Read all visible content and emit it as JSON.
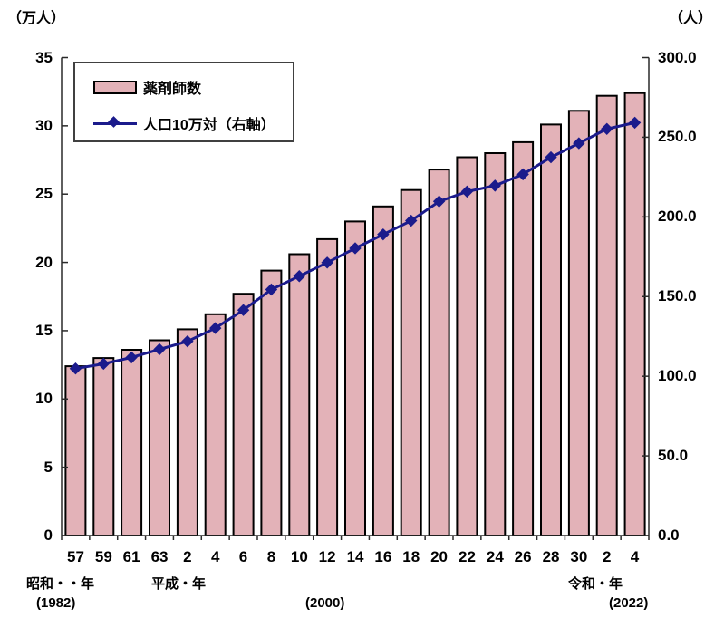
{
  "chart_data": {
    "type": "bar+line",
    "categories": [
      "57",
      "59",
      "61",
      "63",
      "2",
      "4",
      "6",
      "8",
      "10",
      "12",
      "14",
      "16",
      "18",
      "20",
      "22",
      "24",
      "26",
      "28",
      "30",
      "2",
      "4"
    ],
    "series": [
      {
        "name": "薬剤師数",
        "type": "bar",
        "axis": "left",
        "color": "#e3b2b8",
        "border_color": "#000000",
        "values": [
          12.4,
          13.0,
          13.6,
          14.3,
          15.1,
          16.2,
          17.7,
          19.4,
          20.6,
          21.7,
          23.0,
          24.1,
          25.3,
          26.8,
          27.7,
          28.0,
          28.8,
          30.1,
          31.1,
          32.2,
          32.4
        ]
      },
      {
        "name": "人口10万対（右軸）",
        "type": "line",
        "axis": "right",
        "color": "#1b1b8c",
        "marker": "diamond",
        "values": [
          104.8,
          107.8,
          111.8,
          116.9,
          121.9,
          130.2,
          141.5,
          154.4,
          162.8,
          171.3,
          180.3,
          189.0,
          197.6,
          209.7,
          215.9,
          219.6,
          226.7,
          237.4,
          246.2,
          255.2,
          259.1
        ]
      }
    ],
    "left_axis": {
      "unit_label": "（万人）",
      "min": 0,
      "max": 35,
      "tick_step": 5,
      "ticks": [
        "0",
        "5",
        "10",
        "15",
        "20",
        "25",
        "30",
        "35"
      ]
    },
    "right_axis": {
      "unit_label": "（人）",
      "min": 0,
      "max": 300,
      "tick_step": 50,
      "ticks": [
        "0.0",
        "50.0",
        "100.0",
        "150.0",
        "200.0",
        "250.0",
        "300.0"
      ]
    },
    "era_annotations": [
      {
        "text": "昭和・・年"
      },
      {
        "text": "(1982)"
      },
      {
        "text": "平成・年"
      },
      {
        "text": "(2000)"
      },
      {
        "text": "令和・年"
      },
      {
        "text": "(2022)"
      }
    ],
    "grid": "off",
    "legend_position": "top-left-inside"
  }
}
